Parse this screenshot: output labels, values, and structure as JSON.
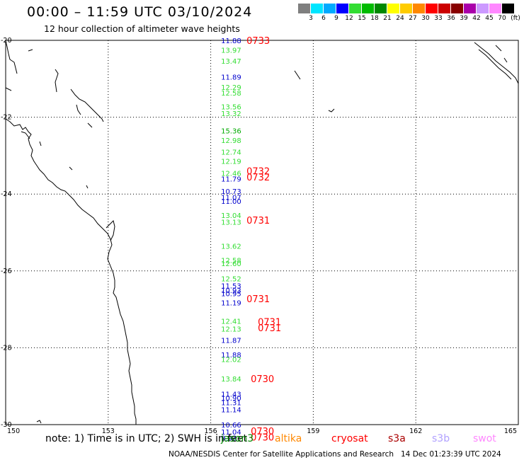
{
  "title": "00:00 – 11:59 UTC 03/10/2024",
  "subtitle": "12 hour collection of altimeter wave heights",
  "color_scale": {
    "unit": "(ft)",
    "bins": [
      {
        "label": "",
        "color": "#7f7f7f"
      },
      {
        "label": "3",
        "color": "#00e5ff"
      },
      {
        "label": "6",
        "color": "#00aaff"
      },
      {
        "label": "9",
        "color": "#0000ff"
      },
      {
        "label": "12",
        "color": "#33dd33"
      },
      {
        "label": "15",
        "color": "#00bb00"
      },
      {
        "label": "18",
        "color": "#008800"
      },
      {
        "label": "21",
        "color": "#ffff00"
      },
      {
        "label": "24",
        "color": "#ffcc00"
      },
      {
        "label": "27",
        "color": "#ff8800"
      },
      {
        "label": "30",
        "color": "#ff0000"
      },
      {
        "label": "33",
        "color": "#cc0000"
      },
      {
        "label": "36",
        "color": "#880000"
      },
      {
        "label": "39",
        "color": "#aa00aa"
      },
      {
        "label": "42",
        "color": "#cc99ff"
      },
      {
        "label": "45",
        "color": "#ff88ff"
      },
      {
        "label": "70",
        "color": "#000000"
      }
    ]
  },
  "axes": {
    "lat_labels": [
      "-20",
      "-22",
      "-24",
      "-26",
      "-28",
      "-30"
    ],
    "lon_labels": [
      "150",
      "153",
      "156",
      "159",
      "162",
      "165"
    ],
    "lat_range": [
      -30,
      -20
    ],
    "lon_range": [
      150,
      165
    ]
  },
  "track": {
    "lon": 156.3,
    "wave_heights": [
      {
        "lat": -20.0,
        "value": "11.88",
        "color": "#0000cc"
      },
      {
        "lat": -20.25,
        "value": "13.97",
        "color": "#33dd33"
      },
      {
        "lat": -20.53,
        "value": "13.47",
        "color": "#33dd33"
      },
      {
        "lat": -20.95,
        "value": "11.89",
        "color": "#0000cc"
      },
      {
        "lat": -21.22,
        "value": "12.29",
        "color": "#33dd33"
      },
      {
        "lat": -21.36,
        "value": "12.58",
        "color": "#33dd33"
      },
      {
        "lat": -21.72,
        "value": "13.56",
        "color": "#33dd33"
      },
      {
        "lat": -21.9,
        "value": "13.32",
        "color": "#33dd33"
      },
      {
        "lat": -22.35,
        "value": "15.36",
        "color": "#00aa00"
      },
      {
        "lat": -22.6,
        "value": "12.98",
        "color": "#33dd33"
      },
      {
        "lat": -22.9,
        "value": "12.74",
        "color": "#33dd33"
      },
      {
        "lat": -23.14,
        "value": "12.19",
        "color": "#33dd33"
      },
      {
        "lat": -23.45,
        "value": "12.46",
        "color": "#33dd33"
      },
      {
        "lat": -23.6,
        "value": "11.79",
        "color": "#0000cc"
      },
      {
        "lat": -23.92,
        "value": "10.73",
        "color": "#0000cc"
      },
      {
        "lat": -24.08,
        "value": "11.07",
        "color": "#0000cc"
      },
      {
        "lat": -24.18,
        "value": "11.00",
        "color": "#0000cc"
      },
      {
        "lat": -24.55,
        "value": "13.04",
        "color": "#33dd33"
      },
      {
        "lat": -24.72,
        "value": "13.13",
        "color": "#33dd33"
      },
      {
        "lat": -25.35,
        "value": "13.62",
        "color": "#33dd33"
      },
      {
        "lat": -25.72,
        "value": "12.58",
        "color": "#33dd33"
      },
      {
        "lat": -25.8,
        "value": "12.60",
        "color": "#33dd33"
      },
      {
        "lat": -26.2,
        "value": "12.52",
        "color": "#33dd33"
      },
      {
        "lat": -26.38,
        "value": "11.53",
        "color": "#0000cc"
      },
      {
        "lat": -26.5,
        "value": "10.93",
        "color": "#0000cc"
      },
      {
        "lat": -26.58,
        "value": "10.95",
        "color": "#0000cc"
      },
      {
        "lat": -26.82,
        "value": "11.19",
        "color": "#0000cc"
      },
      {
        "lat": -27.3,
        "value": "12.41",
        "color": "#33dd33"
      },
      {
        "lat": -27.5,
        "value": "12.13",
        "color": "#33dd33"
      },
      {
        "lat": -27.8,
        "value": "11.87",
        "color": "#0000cc"
      },
      {
        "lat": -28.18,
        "value": "11.88",
        "color": "#0000cc"
      },
      {
        "lat": -28.3,
        "value": "12.02",
        "color": "#33dd33"
      },
      {
        "lat": -28.8,
        "value": "13.84",
        "color": "#33dd33"
      },
      {
        "lat": -29.2,
        "value": "11.43",
        "color": "#0000cc"
      },
      {
        "lat": -29.3,
        "value": "10.90",
        "color": "#0000cc"
      },
      {
        "lat": -29.42,
        "value": "11.31",
        "color": "#0000cc"
      },
      {
        "lat": -29.6,
        "value": "11.14",
        "color": "#0000cc"
      },
      {
        "lat": -30.0,
        "value": "10.66",
        "color": "#0000cc"
      },
      {
        "lat": -30.18,
        "value": "11.04",
        "color": "#0000cc"
      },
      {
        "lat": -30.34,
        "value": "9.93",
        "color": "#0000cc"
      }
    ],
    "time_labels": [
      {
        "lat": -20.0,
        "value": "0733"
      },
      {
        "lat": -23.4,
        "value": "0732"
      },
      {
        "lat": -23.55,
        "value": "0732"
      },
      {
        "lat": -24.68,
        "value": "0731"
      },
      {
        "lat": -26.72,
        "value": "0731"
      },
      {
        "lat": -27.32,
        "value": "0731"
      },
      {
        "lat": -27.48,
        "value": "0731"
      },
      {
        "lat": -28.8,
        "value": "0730"
      },
      {
        "lat": -30.17,
        "value": "0730"
      },
      {
        "lat": -30.32,
        "value": "0730"
      }
    ]
  },
  "note": "note:  1) Time is in UTC; 2) SWH is in feet",
  "missions": [
    {
      "name": "jason3",
      "color": "#008800"
    },
    {
      "name": "altika",
      "color": "#ff8800"
    },
    {
      "name": "cryosat",
      "color": "#ff0000"
    },
    {
      "name": "s3a",
      "color": "#aa0000"
    },
    {
      "name": "s3b",
      "color": "#b0a0ff"
    },
    {
      "name": "swot",
      "color": "#ff88ff"
    }
  ],
  "credit": "NOAA/NESDIS Center for Satellite Applications and Research",
  "timestamp": "14 Dec 01:23:39 UTC 2024"
}
